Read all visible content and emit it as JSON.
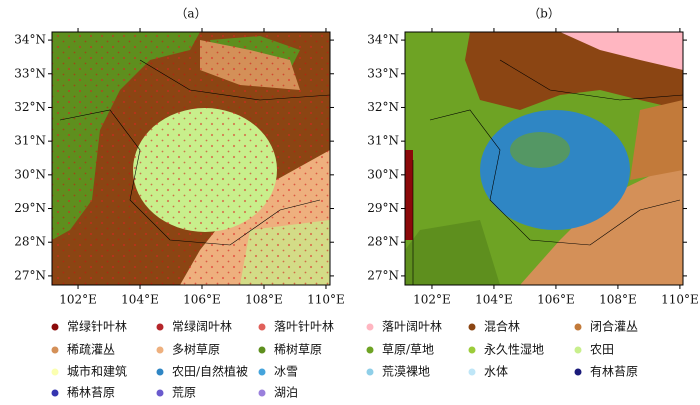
{
  "panels": [
    {
      "label": "（a）",
      "xlim": [
        101.16,
        110.13
      ],
      "ylim": [
        26.73,
        34.24
      ],
      "xticks": [
        {
          "value": 102,
          "label": "102°E"
        },
        {
          "value": 104,
          "label": "104°E"
        },
        {
          "value": 106,
          "label": "106°E"
        },
        {
          "value": 108,
          "label": "108°E"
        },
        {
          "value": 110,
          "label": "110°E"
        }
      ],
      "yticks": [
        {
          "value": 27,
          "label": "27°N"
        },
        {
          "value": 28,
          "label": "28°N"
        },
        {
          "value": 29,
          "label": "29°N"
        },
        {
          "value": 30,
          "label": "30°N"
        },
        {
          "value": 31,
          "label": "31°N"
        },
        {
          "value": 32,
          "label": "32°N"
        },
        {
          "value": 33,
          "label": "33°N"
        },
        {
          "value": 34,
          "label": "34°N"
        }
      ]
    },
    {
      "label": "（b）",
      "xlim": [
        101.13,
        110.1
      ],
      "ylim": [
        26.73,
        34.24
      ],
      "xticks": [
        {
          "value": 102,
          "label": "102°E"
        },
        {
          "value": 104,
          "label": "104°E"
        },
        {
          "value": 106,
          "label": "106°E"
        },
        {
          "value": 108,
          "label": "108°E"
        },
        {
          "value": 110,
          "label": "110°E"
        }
      ],
      "yticks": [
        {
          "value": 27,
          "label": "27°N"
        },
        {
          "value": 28,
          "label": "28°N"
        },
        {
          "value": 29,
          "label": "29°N"
        },
        {
          "value": 30,
          "label": "30°N"
        },
        {
          "value": 31,
          "label": "31°N"
        },
        {
          "value": 32,
          "label": "32°N"
        },
        {
          "value": 33,
          "label": "33°N"
        },
        {
          "value": 34,
          "label": "34°N"
        }
      ]
    }
  ],
  "legend": [
    {
      "name": "常绿针叶林",
      "color": "#8b0a0a"
    },
    {
      "name": "常绿阔叶林",
      "color": "#b5262a"
    },
    {
      "name": "落叶针叶林",
      "color": "#e0605a"
    },
    {
      "name": "落叶阔叶林",
      "color": "#ffb6c1"
    },
    {
      "name": "混合林",
      "color": "#8b4513"
    },
    {
      "name": "闭合灌丛",
      "color": "#c27a3a"
    },
    {
      "name": "稀疏灌丛",
      "color": "#d49058"
    },
    {
      "name": "多树草原",
      "color": "#eeb07e"
    },
    {
      "name": "稀树草原",
      "color": "#5e8f1e"
    },
    {
      "name": "草原/草地",
      "color": "#6ea324"
    },
    {
      "name": "永久性湿地",
      "color": "#9ccc3a"
    },
    {
      "name": "农田",
      "color": "#c8ef8c"
    },
    {
      "name": "城市和建筑",
      "color": "#fbffb0"
    },
    {
      "name": "农田/自然植被",
      "color": "#2f86c4"
    },
    {
      "name": "冰雪",
      "color": "#45a4dc"
    },
    {
      "name": "荒漠裸地",
      "color": "#8fcfe8"
    },
    {
      "name": "水体",
      "color": "#bfe6f7"
    },
    {
      "name": "有林苔原",
      "color": "#1a1a7a"
    },
    {
      "name": "稀林苔原",
      "color": "#3535b0"
    },
    {
      "name": "荒原",
      "color": "#6a5acd"
    },
    {
      "name": "湖泊",
      "color": "#9a80dc"
    }
  ]
}
